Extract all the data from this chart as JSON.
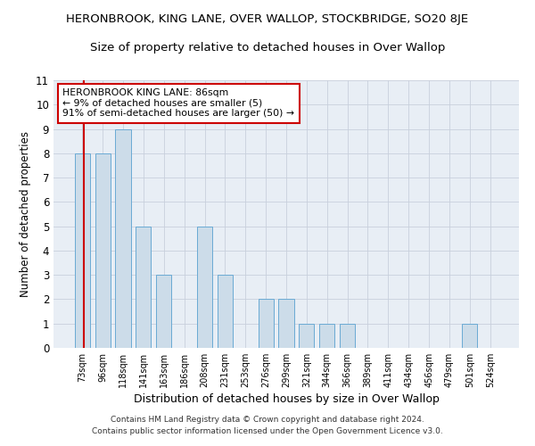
{
  "title": "HERONBROOK, KING LANE, OVER WALLOP, STOCKBRIDGE, SO20 8JE",
  "subtitle": "Size of property relative to detached houses in Over Wallop",
  "xlabel": "Distribution of detached houses by size in Over Wallop",
  "ylabel": "Number of detached properties",
  "categories": [
    "73sqm",
    "96sqm",
    "118sqm",
    "141sqm",
    "163sqm",
    "186sqm",
    "208sqm",
    "231sqm",
    "253sqm",
    "276sqm",
    "299sqm",
    "321sqm",
    "344sqm",
    "366sqm",
    "389sqm",
    "411sqm",
    "434sqm",
    "456sqm",
    "479sqm",
    "501sqm",
    "524sqm"
  ],
  "values": [
    8,
    8,
    9,
    5,
    3,
    0,
    5,
    3,
    0,
    2,
    2,
    1,
    1,
    1,
    0,
    0,
    0,
    0,
    0,
    1,
    0
  ],
  "bar_color": "#ccdce9",
  "bar_edge_color": "#6aaad4",
  "annotation_text": "HERONBROOK KING LANE: 86sqm\n← 9% of detached houses are smaller (5)\n91% of semi-detached houses are larger (50) →",
  "annotation_box_color": "#ffffff",
  "annotation_box_edge": "#cc0000",
  "ylim_max": 11,
  "yticks": [
    0,
    1,
    2,
    3,
    4,
    5,
    6,
    7,
    8,
    9,
    10,
    11
  ],
  "footer_line1": "Contains HM Land Registry data © Crown copyright and database right 2024.",
  "footer_line2": "Contains public sector information licensed under the Open Government Licence v3.0.",
  "background_color": "#ffffff",
  "plot_bg_color": "#e8eef5",
  "grid_color": "#c8d0dc",
  "title_fontsize": 9.5,
  "subtitle_fontsize": 9.5,
  "bar_width": 0.75
}
